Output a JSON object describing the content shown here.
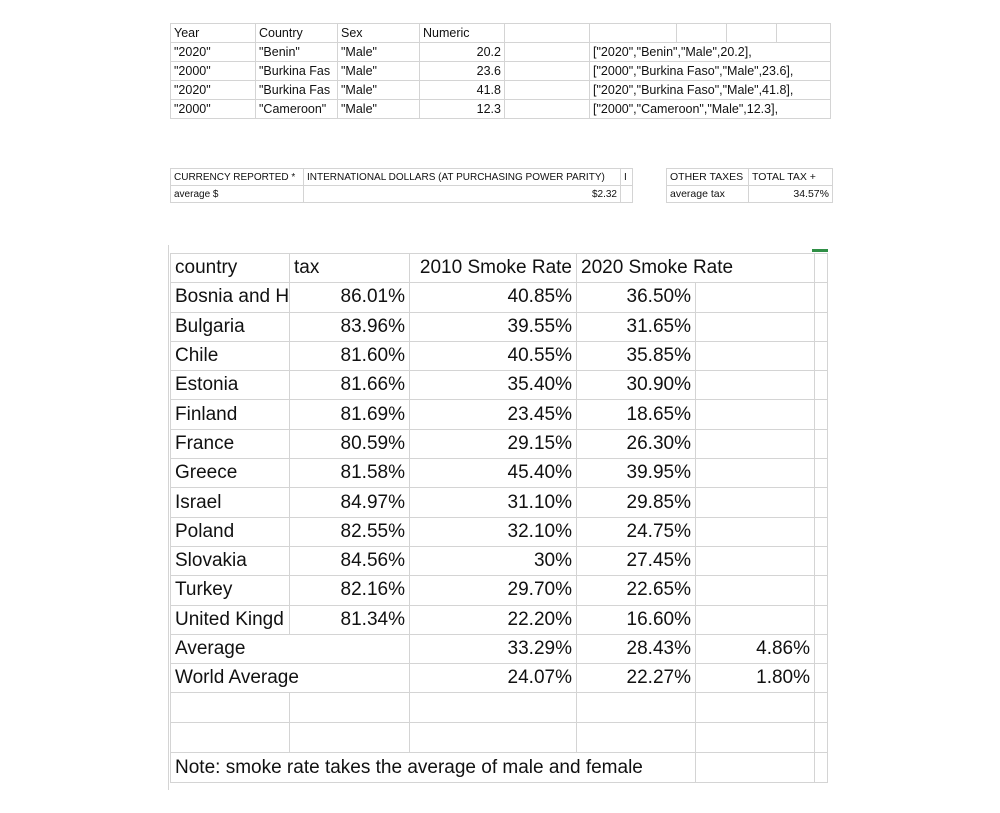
{
  "top_table": {
    "headers": [
      "Year",
      "Country",
      "Sex",
      "Numeric",
      "",
      "",
      "",
      "",
      ""
    ],
    "rows": [
      {
        "year": "\"2020\"",
        "country": "\"Benin\"",
        "sex": "\"Male\"",
        "numeric": "20.2",
        "json": "[\"2020\",\"Benin\",\"Male\",20.2],"
      },
      {
        "year": "\"2000\"",
        "country": "\"Burkina Fas",
        "sex": "\"Male\"",
        "numeric": "23.6",
        "json": "[\"2000\",\"Burkina Faso\",\"Male\",23.6],"
      },
      {
        "year": "\"2020\"",
        "country": "\"Burkina Fas",
        "sex": "\"Male\"",
        "numeric": "41.8",
        "json": "[\"2020\",\"Burkina Faso\",\"Male\",41.8],"
      },
      {
        "year": "\"2000\"",
        "country": "\"Cameroon\"",
        "sex": "\"Male\"",
        "numeric": "12.3",
        "json": "[\"2000\",\"Cameroon\",\"Male\",12.3],"
      }
    ]
  },
  "currency_table": {
    "label": "CURRENCY REPORTED *",
    "value": "INTERNATIONAL DOLLARS (AT PURCHASING POWER PARITY)",
    "trail": "I",
    "avg_label": "average $",
    "avg_value": "$2.32"
  },
  "tax_table": {
    "col1": "OTHER TAXES",
    "col2": "TOTAL TAX +",
    "avg_label": "average tax",
    "avg_value": "34.57%"
  },
  "smoke_table": {
    "headers": {
      "country": "country",
      "tax": "tax",
      "rate2010": "2010 Smoke Rate",
      "rate2020": "2020 Smoke Rate"
    },
    "rows": [
      {
        "country": "Bosnia and H",
        "tax": "86.01%",
        "rate2010": "40.85%",
        "rate2020": "36.50%"
      },
      {
        "country": "Bulgaria",
        "tax": "83.96%",
        "rate2010": "39.55%",
        "rate2020": "31.65%"
      },
      {
        "country": "Chile",
        "tax": "81.60%",
        "rate2010": "40.55%",
        "rate2020": "35.85%"
      },
      {
        "country": "Estonia",
        "tax": "81.66%",
        "rate2010": "35.40%",
        "rate2020": "30.90%"
      },
      {
        "country": "Finland",
        "tax": "81.69%",
        "rate2010": "23.45%",
        "rate2020": "18.65%"
      },
      {
        "country": "France",
        "tax": "80.59%",
        "rate2010": "29.15%",
        "rate2020": "26.30%"
      },
      {
        "country": "Greece",
        "tax": "81.58%",
        "rate2010": "45.40%",
        "rate2020": "39.95%"
      },
      {
        "country": "Israel",
        "tax": "84.97%",
        "rate2010": "31.10%",
        "rate2020": "29.85%"
      },
      {
        "country": "Poland",
        "tax": "82.55%",
        "rate2010": "32.10%",
        "rate2020": "24.75%"
      },
      {
        "country": "Slovakia",
        "tax": "84.56%",
        "rate2010": "30%",
        "rate2020": "27.45%"
      },
      {
        "country": "Turkey",
        "tax": "82.16%",
        "rate2010": "29.70%",
        "rate2020": "22.65%"
      },
      {
        "country": "United Kingd",
        "tax": "81.34%",
        "rate2010": "22.20%",
        "rate2020": "16.60%"
      }
    ],
    "average": {
      "label": "Average",
      "rate2010": "33.29%",
      "rate2020": "28.43%",
      "extra": "4.86%"
    },
    "world_average": {
      "label": "World Average",
      "rate2010": "24.07%",
      "rate2020": "22.27%",
      "extra": "1.80%"
    },
    "note": "Note: smoke rate takes the average of male and female"
  }
}
